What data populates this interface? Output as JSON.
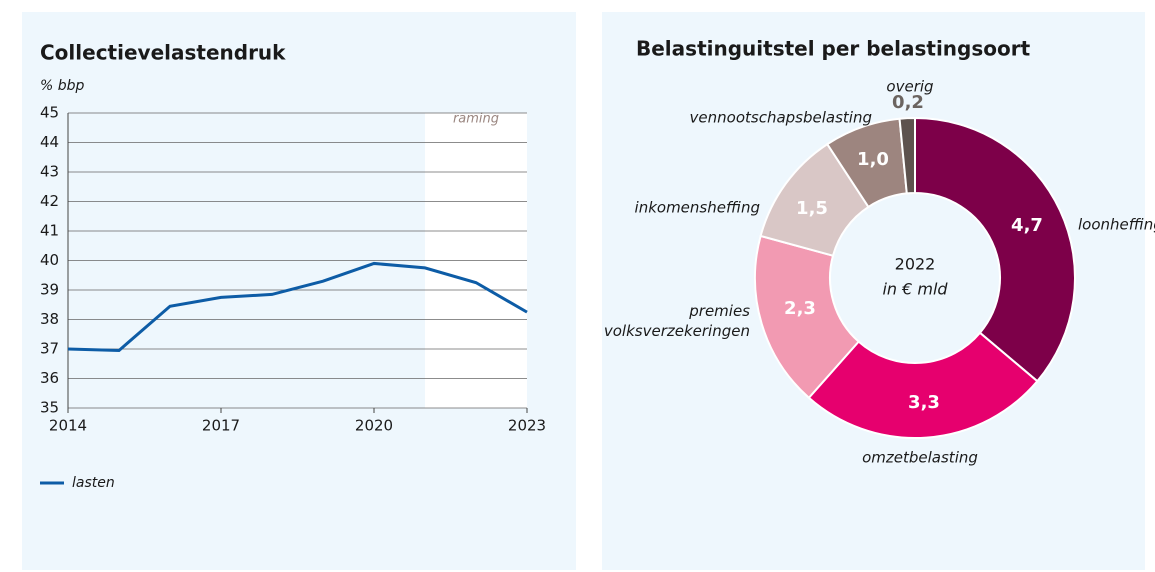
{
  "chart_data": [
    {
      "type": "line",
      "title": "Collectievelastendruk",
      "y_label": "% bbp",
      "x": [
        2014,
        2015,
        2016,
        2017,
        2018,
        2019,
        2020,
        2021,
        2022,
        2023
      ],
      "series": [
        {
          "name": "lasten",
          "color": "#0d5ca6",
          "values": [
            37.0,
            36.95,
            38.45,
            38.75,
            38.85,
            39.3,
            39.9,
            39.75,
            39.25,
            38.25
          ]
        }
      ],
      "xlim": [
        2014,
        2023
      ],
      "xticks": [
        2014,
        2017,
        2020,
        2023
      ],
      "ylim": [
        35,
        45
      ],
      "yticks": [
        35,
        36,
        37,
        38,
        39,
        40,
        41,
        42,
        43,
        44,
        45
      ],
      "grid": true,
      "shaded_region": {
        "label": "raming",
        "from": 2021,
        "to": 2023
      },
      "legend": "bottom-left"
    },
    {
      "type": "donut",
      "title": "Belastinguitstel per belastingsoort",
      "center_text": [
        "2022",
        "in € mld"
      ],
      "categories": [
        "loonheffing",
        "omzetbelasting",
        "premies volksverzekeringen",
        "inkomensheffing",
        "vennootschapsbelasting",
        "overig"
      ],
      "values": [
        4.7,
        3.3,
        2.3,
        1.5,
        1.0,
        0.2
      ],
      "value_labels": [
        "4,7",
        "3,3",
        "2,3",
        "1,5",
        "1,0",
        "0,2"
      ],
      "colors": [
        "#7d0049",
        "#e6006e",
        "#f29ab2",
        "#d9c7c6",
        "#9d857f",
        "#5d524e"
      ]
    }
  ]
}
